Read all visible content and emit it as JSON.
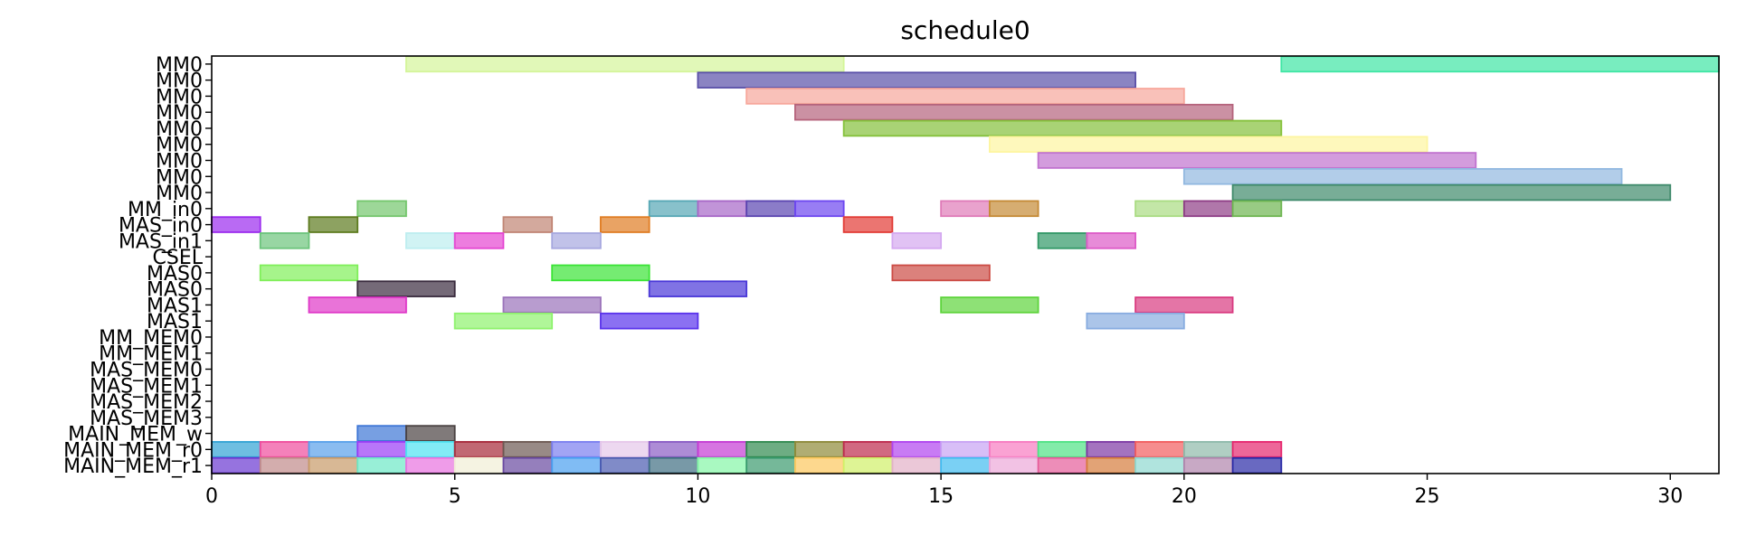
{
  "chart_data": {
    "type": "gantt",
    "title": "schedule0",
    "xlim": [
      0,
      31
    ],
    "xticks": [
      0,
      5,
      10,
      15,
      20,
      25,
      30
    ],
    "rows": [
      "MM0",
      "MM0",
      "MM0",
      "MM0",
      "MM0",
      "MM0",
      "MM0",
      "MM0",
      "MM0",
      "MM_in0",
      "MAS_in0",
      "MAS_in1",
      "CSEL",
      "MAS0",
      "MAS0",
      "MAS1",
      "MAS1",
      "MM_MEM0",
      "MM_MEM1",
      "MAS_MEM0",
      "MAS_MEM1",
      "MAS_MEM2",
      "MAS_MEM3",
      "MAIN_MEM_w",
      "MAIN_MEM_r0",
      "MAIN_MEM_r1"
    ],
    "tasks": [
      {
        "row": 0,
        "start": 4,
        "end": 13,
        "color": "#d4f59a"
      },
      {
        "row": 0,
        "start": 22,
        "end": 31,
        "color": "#3fe6a4"
      },
      {
        "row": 1,
        "start": 10,
        "end": 19,
        "color": "#5a50a8"
      },
      {
        "row": 2,
        "start": 11,
        "end": 20,
        "color": "#f7a79b"
      },
      {
        "row": 3,
        "start": 12,
        "end": 21,
        "color": "#b5637c"
      },
      {
        "row": 4,
        "start": 13,
        "end": 22,
        "color": "#84c13a"
      },
      {
        "row": 5,
        "start": 16,
        "end": 25,
        "color": "#fdf5a0"
      },
      {
        "row": 6,
        "start": 17,
        "end": 26,
        "color": "#c072cf"
      },
      {
        "row": 7,
        "start": 20,
        "end": 29,
        "color": "#91b8e0"
      },
      {
        "row": 8,
        "start": 21,
        "end": 30,
        "color": "#3f8a6b"
      },
      {
        "row": 9,
        "start": 3,
        "end": 4,
        "color": "#74c66c"
      },
      {
        "row": 9,
        "start": 9,
        "end": 10,
        "color": "#56a7b5"
      },
      {
        "row": 9,
        "start": 10,
        "end": 11,
        "color": "#a767c7"
      },
      {
        "row": 9,
        "start": 11,
        "end": 12,
        "color": "#5a44b0"
      },
      {
        "row": 9,
        "start": 12,
        "end": 13,
        "color": "#6c46f0"
      },
      {
        "row": 9,
        "start": 15,
        "end": 16,
        "color": "#df7ab8"
      },
      {
        "row": 9,
        "start": 16,
        "end": 17,
        "color": "#c58a35"
      },
      {
        "row": 9,
        "start": 19,
        "end": 20,
        "color": "#a9dc82"
      },
      {
        "row": 9,
        "start": 20,
        "end": 21,
        "color": "#8e3d86"
      },
      {
        "row": 9,
        "start": 21,
        "end": 22,
        "color": "#6db550"
      },
      {
        "row": 10,
        "start": 0,
        "end": 1,
        "color": "#9b2bee"
      },
      {
        "row": 10,
        "start": 2,
        "end": 3,
        "color": "#5d7b1e"
      },
      {
        "row": 10,
        "start": 6,
        "end": 7,
        "color": "#c08473"
      },
      {
        "row": 10,
        "start": 8,
        "end": 9,
        "color": "#e07c22"
      },
      {
        "row": 10,
        "start": 13,
        "end": 14,
        "color": "#e23b35"
      },
      {
        "row": 11,
        "start": 1,
        "end": 2,
        "color": "#6cc47c"
      },
      {
        "row": 11,
        "start": 4,
        "end": 5,
        "color": "#bdeef0"
      },
      {
        "row": 11,
        "start": 5,
        "end": 6,
        "color": "#e546d2"
      },
      {
        "row": 11,
        "start": 7,
        "end": 8,
        "color": "#a7a8df"
      },
      {
        "row": 11,
        "start": 14,
        "end": 15,
        "color": "#d4a8f0"
      },
      {
        "row": 11,
        "start": 17,
        "end": 18,
        "color": "#319866"
      },
      {
        "row": 11,
        "start": 18,
        "end": 19,
        "color": "#dd5ac7"
      },
      {
        "row": 13,
        "start": 1,
        "end": 3,
        "color": "#80ef5a"
      },
      {
        "row": 13,
        "start": 7,
        "end": 9,
        "color": "#3be436"
      },
      {
        "row": 13,
        "start": 14,
        "end": 16,
        "color": "#cc4b44"
      },
      {
        "row": 14,
        "start": 3,
        "end": 5,
        "color": "#3a2b3e"
      },
      {
        "row": 14,
        "start": 9,
        "end": 11,
        "color": "#4a38d8"
      },
      {
        "row": 15,
        "start": 2,
        "end": 4,
        "color": "#df38c8"
      },
      {
        "row": 15,
        "start": 6,
        "end": 8,
        "color": "#9a72ba"
      },
      {
        "row": 15,
        "start": 15,
        "end": 17,
        "color": "#5ed43c"
      },
      {
        "row": 15,
        "start": 19,
        "end": 21,
        "color": "#d93a80"
      },
      {
        "row": 16,
        "start": 5,
        "end": 7,
        "color": "#8ef26d"
      },
      {
        "row": 16,
        "start": 8,
        "end": 10,
        "color": "#5a33ec"
      },
      {
        "row": 16,
        "start": 18,
        "end": 20,
        "color": "#87ace0"
      },
      {
        "row": 23,
        "start": 3,
        "end": 4,
        "color": "#3d76d6"
      },
      {
        "row": 23,
        "start": 4,
        "end": 5,
        "color": "#4a4242"
      },
      {
        "row": 24,
        "start": 0,
        "end": 1,
        "color": "#31a3d4"
      },
      {
        "row": 24,
        "start": 1,
        "end": 2,
        "color": "#f04c9c"
      },
      {
        "row": 24,
        "start": 2,
        "end": 3,
        "color": "#58a0ea"
      },
      {
        "row": 24,
        "start": 3,
        "end": 4,
        "color": "#9a3cf6"
      },
      {
        "row": 24,
        "start": 4,
        "end": 5,
        "color": "#4de2f2"
      },
      {
        "row": 24,
        "start": 5,
        "end": 6,
        "color": "#a62838"
      },
      {
        "row": 24,
        "start": 6,
        "end": 7,
        "color": "#6c5852"
      },
      {
        "row": 24,
        "start": 7,
        "end": 8,
        "color": "#7b7ef0"
      },
      {
        "row": 24,
        "start": 8,
        "end": 9,
        "color": "#e6c7ea"
      },
      {
        "row": 24,
        "start": 9,
        "end": 10,
        "color": "#8a5bc4"
      },
      {
        "row": 24,
        "start": 10,
        "end": 11,
        "color": "#c43ad4"
      },
      {
        "row": 24,
        "start": 11,
        "end": 12,
        "color": "#2f8a4e"
      },
      {
        "row": 24,
        "start": 12,
        "end": 13,
        "color": "#8e8a38"
      },
      {
        "row": 24,
        "start": 13,
        "end": 14,
        "color": "#bd2a4c"
      },
      {
        "row": 24,
        "start": 14,
        "end": 15,
        "color": "#b043f0"
      },
      {
        "row": 24,
        "start": 15,
        "end": 16,
        "color": "#c8a2f4"
      },
      {
        "row": 24,
        "start": 16,
        "end": 17,
        "color": "#f87ac0"
      },
      {
        "row": 24,
        "start": 17,
        "end": 18,
        "color": "#4ee284"
      },
      {
        "row": 24,
        "start": 18,
        "end": 19,
        "color": "#7d38a4"
      },
      {
        "row": 24,
        "start": 19,
        "end": 20,
        "color": "#f25d5e"
      },
      {
        "row": 24,
        "start": 20,
        "end": 21,
        "color": "#8eb9aa"
      },
      {
        "row": 24,
        "start": 21,
        "end": 22,
        "color": "#e6266e"
      },
      {
        "row": 25,
        "start": 0,
        "end": 1,
        "color": "#6a38d2"
      },
      {
        "row": 25,
        "start": 1,
        "end": 2,
        "color": "#c08a8a"
      },
      {
        "row": 25,
        "start": 2,
        "end": 3,
        "color": "#c89a68"
      },
      {
        "row": 25,
        "start": 3,
        "end": 4,
        "color": "#6ce8c6"
      },
      {
        "row": 25,
        "start": 4,
        "end": 5,
        "color": "#e872e0"
      },
      {
        "row": 25,
        "start": 5,
        "end": 6,
        "color": "#f1eed6"
      },
      {
        "row": 25,
        "start": 6,
        "end": 7,
        "color": "#6848a0"
      },
      {
        "row": 25,
        "start": 7,
        "end": 8,
        "color": "#4aa0f0"
      },
      {
        "row": 25,
        "start": 8,
        "end": 9,
        "color": "#4a5ab0"
      },
      {
        "row": 25,
        "start": 9,
        "end": 10,
        "color": "#3e6e82"
      },
      {
        "row": 25,
        "start": 10,
        "end": 11,
        "color": "#84f6a6"
      },
      {
        "row": 25,
        "start": 11,
        "end": 12,
        "color": "#3a9a6e"
      },
      {
        "row": 25,
        "start": 12,
        "end": 13,
        "color": "#fcc85e"
      },
      {
        "row": 25,
        "start": 13,
        "end": 14,
        "color": "#d0f068"
      },
      {
        "row": 25,
        "start": 14,
        "end": 15,
        "color": "#e2b0c8"
      },
      {
        "row": 25,
        "start": 15,
        "end": 16,
        "color": "#42bcf0"
      },
      {
        "row": 25,
        "start": 16,
        "end": 17,
        "color": "#eca8d8"
      },
      {
        "row": 25,
        "start": 17,
        "end": 18,
        "color": "#e65c9a"
      },
      {
        "row": 25,
        "start": 18,
        "end": 19,
        "color": "#d67c3c"
      },
      {
        "row": 25,
        "start": 19,
        "end": 20,
        "color": "#8ed8d0"
      },
      {
        "row": 25,
        "start": 20,
        "end": 21,
        "color": "#b084ac"
      },
      {
        "row": 25,
        "start": 21,
        "end": 22,
        "color": "#2a2aa6"
      }
    ]
  }
}
